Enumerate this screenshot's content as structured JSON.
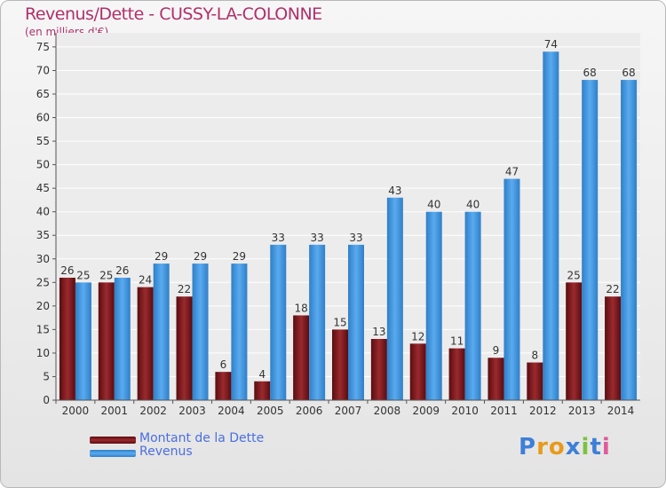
{
  "chart_data": {
    "type": "bar",
    "title": "Revenus/Dette - CUSSY-LA-COLONNE",
    "subtitle": "(en milliers d'€)",
    "categories": [
      "2000",
      "2001",
      "2002",
      "2003",
      "2004",
      "2005",
      "2006",
      "2007",
      "2008",
      "2009",
      "2010",
      "2011",
      "2012",
      "2013",
      "2014"
    ],
    "series": [
      {
        "name": "Montant de la Dette",
        "color": "#7a1418",
        "values": [
          26,
          25,
          24,
          22,
          6,
          4,
          18,
          15,
          13,
          12,
          11,
          9,
          8,
          25,
          22
        ]
      },
      {
        "name": "Revenus",
        "color": "#3d93e0",
        "values": [
          25,
          26,
          29,
          29,
          29,
          33,
          33,
          33,
          43,
          40,
          40,
          47,
          74,
          68,
          68
        ]
      }
    ],
    "y_ticks": [
      0,
      5,
      10,
      15,
      20,
      25,
      30,
      35,
      40,
      45,
      50,
      55,
      60,
      65,
      70,
      75
    ],
    "ylim": [
      0,
      78
    ],
    "grid": true,
    "xlabel": "",
    "ylabel": ""
  },
  "logo": {
    "text": "Proxiti"
  }
}
